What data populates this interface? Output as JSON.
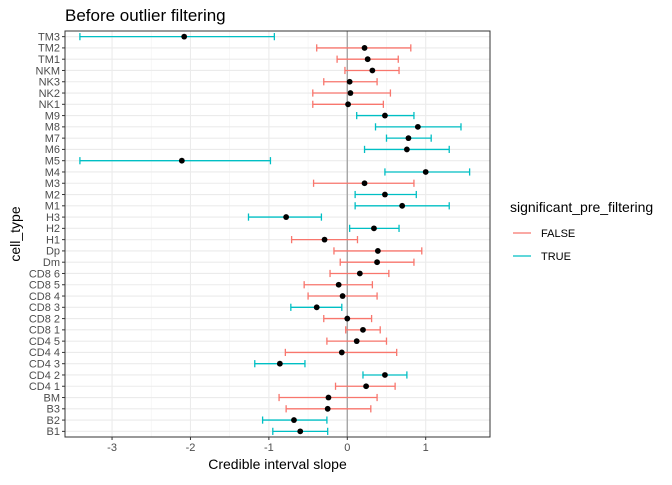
{
  "chart_data": {
    "type": "scatter",
    "title": "Before outlier filtering",
    "xlabel": "Credible interval slope",
    "ylabel": "cell_type",
    "xlim": [
      -3.6,
      1.82
    ],
    "x_ticks": [
      -3,
      -2,
      -1,
      0,
      1
    ],
    "x_tick_labels": [
      "-3",
      "-2",
      "-1",
      "0",
      "1"
    ],
    "grid": true,
    "reference_line_x": 0,
    "legend": {
      "title": "significant_pre_filtering",
      "placement": "right",
      "entries": [
        {
          "label": "FALSE",
          "color": "#F8766D"
        },
        {
          "label": "TRUE",
          "color": "#00BFC4"
        }
      ]
    },
    "point_color": "#000000",
    "categories": [
      "B1",
      "B2",
      "B3",
      "BM",
      "CD4 1",
      "CD4 2",
      "CD4 3",
      "CD4 4",
      "CD4 5",
      "CD8 1",
      "CD8 2",
      "CD8 3",
      "CD8 4",
      "CD8 5",
      "CD8 6",
      "Dm",
      "Dp",
      "H1",
      "H2",
      "H3",
      "M1",
      "M2",
      "M3",
      "M4",
      "M5",
      "M6",
      "M7",
      "M8",
      "M9",
      "NK1",
      "NK2",
      "NK3",
      "NKM",
      "TM1",
      "TM2",
      "TM3"
    ],
    "series": [
      {
        "category": "B1",
        "estimate": -0.6,
        "lower": -0.95,
        "upper": -0.25,
        "significant": "TRUE"
      },
      {
        "category": "B2",
        "estimate": -0.68,
        "lower": -1.08,
        "upper": -0.26,
        "significant": "TRUE"
      },
      {
        "category": "B3",
        "estimate": -0.25,
        "lower": -0.78,
        "upper": 0.3,
        "significant": "FALSE"
      },
      {
        "category": "BM",
        "estimate": -0.24,
        "lower": -0.87,
        "upper": 0.38,
        "significant": "FALSE"
      },
      {
        "category": "CD4 1",
        "estimate": 0.24,
        "lower": -0.15,
        "upper": 0.61,
        "significant": "FALSE"
      },
      {
        "category": "CD4 2",
        "estimate": 0.48,
        "lower": 0.2,
        "upper": 0.76,
        "significant": "TRUE"
      },
      {
        "category": "CD4 3",
        "estimate": -0.86,
        "lower": -1.18,
        "upper": -0.54,
        "significant": "TRUE"
      },
      {
        "category": "CD4 4",
        "estimate": -0.07,
        "lower": -0.79,
        "upper": 0.63,
        "significant": "FALSE"
      },
      {
        "category": "CD4 5",
        "estimate": 0.12,
        "lower": -0.26,
        "upper": 0.5,
        "significant": "FALSE"
      },
      {
        "category": "CD8 1",
        "estimate": 0.2,
        "lower": -0.02,
        "upper": 0.42,
        "significant": "FALSE"
      },
      {
        "category": "CD8 2",
        "estimate": 0.0,
        "lower": -0.3,
        "upper": 0.31,
        "significant": "FALSE"
      },
      {
        "category": "CD8 3",
        "estimate": -0.39,
        "lower": -0.72,
        "upper": -0.07,
        "significant": "TRUE"
      },
      {
        "category": "CD8 4",
        "estimate": -0.06,
        "lower": -0.5,
        "upper": 0.38,
        "significant": "FALSE"
      },
      {
        "category": "CD8 5",
        "estimate": -0.11,
        "lower": -0.55,
        "upper": 0.32,
        "significant": "FALSE"
      },
      {
        "category": "CD8 6",
        "estimate": 0.16,
        "lower": -0.22,
        "upper": 0.53,
        "significant": "FALSE"
      },
      {
        "category": "Dm",
        "estimate": 0.38,
        "lower": -0.09,
        "upper": 0.85,
        "significant": "FALSE"
      },
      {
        "category": "Dp",
        "estimate": 0.39,
        "lower": -0.17,
        "upper": 0.95,
        "significant": "FALSE"
      },
      {
        "category": "H1",
        "estimate": -0.29,
        "lower": -0.71,
        "upper": 0.13,
        "significant": "FALSE"
      },
      {
        "category": "H2",
        "estimate": 0.34,
        "lower": 0.03,
        "upper": 0.66,
        "significant": "TRUE"
      },
      {
        "category": "H3",
        "estimate": -0.78,
        "lower": -1.26,
        "upper": -0.33,
        "significant": "TRUE"
      },
      {
        "category": "M1",
        "estimate": 0.7,
        "lower": 0.1,
        "upper": 1.3,
        "significant": "TRUE"
      },
      {
        "category": "M2",
        "estimate": 0.48,
        "lower": 0.1,
        "upper": 0.88,
        "significant": "TRUE"
      },
      {
        "category": "M3",
        "estimate": 0.22,
        "lower": -0.43,
        "upper": 0.85,
        "significant": "FALSE"
      },
      {
        "category": "M4",
        "estimate": 1.0,
        "lower": 0.48,
        "upper": 1.56,
        "significant": "TRUE"
      },
      {
        "category": "M5",
        "estimate": -2.11,
        "lower": -3.41,
        "upper": -0.98,
        "significant": "TRUE"
      },
      {
        "category": "M6",
        "estimate": 0.76,
        "lower": 0.22,
        "upper": 1.3,
        "significant": "TRUE"
      },
      {
        "category": "M7",
        "estimate": 0.78,
        "lower": 0.5,
        "upper": 1.07,
        "significant": "TRUE"
      },
      {
        "category": "M8",
        "estimate": 0.9,
        "lower": 0.36,
        "upper": 1.45,
        "significant": "TRUE"
      },
      {
        "category": "M9",
        "estimate": 0.48,
        "lower": 0.12,
        "upper": 0.85,
        "significant": "TRUE"
      },
      {
        "category": "NK1",
        "estimate": 0.01,
        "lower": -0.44,
        "upper": 0.46,
        "significant": "FALSE"
      },
      {
        "category": "NK2",
        "estimate": 0.04,
        "lower": -0.44,
        "upper": 0.55,
        "significant": "FALSE"
      },
      {
        "category": "NK3",
        "estimate": 0.03,
        "lower": -0.3,
        "upper": 0.38,
        "significant": "FALSE"
      },
      {
        "category": "NKM",
        "estimate": 0.32,
        "lower": -0.03,
        "upper": 0.66,
        "significant": "FALSE"
      },
      {
        "category": "TM1",
        "estimate": 0.26,
        "lower": -0.13,
        "upper": 0.65,
        "significant": "FALSE"
      },
      {
        "category": "TM2",
        "estimate": 0.22,
        "lower": -0.39,
        "upper": 0.81,
        "significant": "FALSE"
      },
      {
        "category": "TM3",
        "estimate": -2.08,
        "lower": -3.41,
        "upper": -0.93,
        "significant": "TRUE"
      }
    ]
  }
}
